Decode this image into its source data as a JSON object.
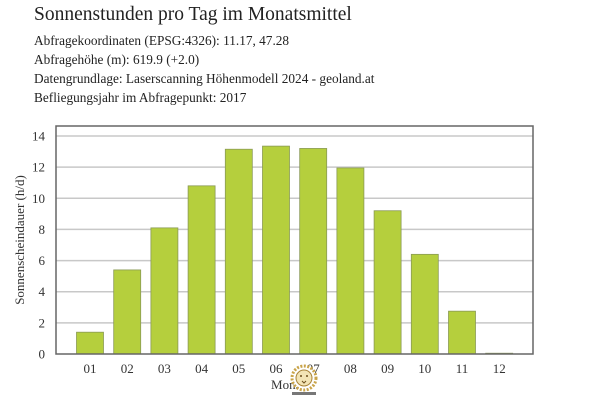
{
  "header": {
    "title": "Sonnenstunden pro Tag im Monatsmittel",
    "lines": [
      "Abfragekoordinaten (EPSG:4326): 11.17, 47.28",
      "Abfragehöhe (m): 619.9 (+2.0)",
      "Datengrundlage: Laserscanning Höhenmodell 2024 - geoland.at",
      "Befliegungsjahr im Abfragepunkt: 2017"
    ]
  },
  "chart_data": {
    "type": "bar",
    "categories": [
      "01",
      "02",
      "03",
      "04",
      "05",
      "06",
      "07",
      "08",
      "09",
      "10",
      "11",
      "12"
    ],
    "values": [
      1.4,
      5.4,
      8.1,
      10.8,
      13.15,
      13.35,
      13.2,
      11.95,
      9.2,
      6.4,
      2.75,
      0.05
    ],
    "xlabel": "Monat",
    "ylabel": "Sonnenscheindauer (h/d)",
    "ylim": [
      0,
      14.6
    ],
    "yticks": [
      0,
      2,
      4,
      6,
      8,
      10,
      12,
      14
    ],
    "grid": true,
    "bar_color": "#b5cf3d",
    "bar_edge_color": "#8a9a55"
  },
  "watermark": {
    "icon": "lion-logo-icon"
  }
}
